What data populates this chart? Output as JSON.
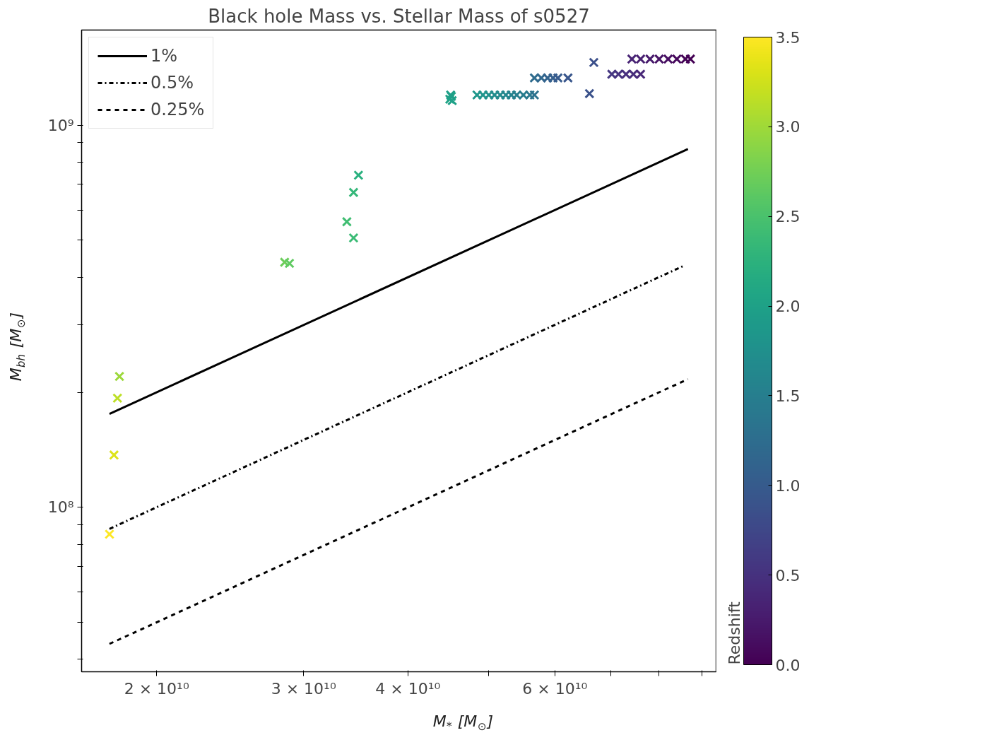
{
  "chart_data": {
    "type": "scatter",
    "title": "Black hole Mass vs. Stellar Mass of s0527",
    "xlabel": "M$_{*}$ [M$_{⊙}$]",
    "ylabel": "M$_{bh}$ [M$_{⊙}$]",
    "clabel": "Redshift",
    "log": "xy",
    "grid": false,
    "legend": "top left",
    "marker": "cross",
    "xlim": [
      16260000000.0,
      93600000000.0
    ],
    "ylim": [
      37100000.0,
      1775000000.0
    ],
    "xticks": [
      {
        "value": 20000000000.0,
        "label": "2 × 10¹⁰"
      },
      {
        "value": 30000000000.0,
        "label": "3 × 10¹⁰"
      },
      {
        "value": 40000000000.0,
        "label": "4 × 10¹⁰"
      },
      {
        "value": 50000000000.0,
        "label": null
      },
      {
        "value": 60000000000.0,
        "label": "6 × 10¹⁰"
      },
      {
        "value": 70000000000.0,
        "label": null
      },
      {
        "value": 80000000000.0,
        "label": null
      },
      {
        "value": 90000000000.0,
        "label": null
      }
    ],
    "yticks": [
      {
        "value": 40000000.0,
        "label": null
      },
      {
        "value": 50000000.0,
        "label": null
      },
      {
        "value": 60000000.0,
        "label": null
      },
      {
        "value": 70000000.0,
        "label": null
      },
      {
        "value": 80000000.0,
        "label": null
      },
      {
        "value": 90000000.0,
        "label": null
      },
      {
        "value": 100000000.0,
        "label": "10⁸"
      },
      {
        "value": 200000000.0,
        "label": null
      },
      {
        "value": 300000000.0,
        "label": null
      },
      {
        "value": 400000000.0,
        "label": null
      },
      {
        "value": 500000000.0,
        "label": null
      },
      {
        "value": 600000000.0,
        "label": null
      },
      {
        "value": 700000000.0,
        "label": null
      },
      {
        "value": 800000000.0,
        "label": null
      },
      {
        "value": 900000000.0,
        "label": null
      },
      {
        "value": 1000000000.0,
        "label": "10⁹"
      }
    ],
    "clim": [
      0,
      3.5
    ],
    "cticks": [
      {
        "value": 0,
        "label": "0.0"
      },
      0.5,
      {
        "value": 1,
        "label": "1.0"
      },
      1.5,
      {
        "value": 2,
        "label": "2.0"
      },
      2.5,
      {
        "value": 3,
        "label": "3.0"
      },
      3.5
    ],
    "series": [
      {
        "colors": [
          "#fde725",
          "#dde318",
          "#bddf26",
          "#9cd83b",
          "#6ccd5a",
          "#5fca61",
          "#40bd72",
          "#3bbb75",
          "#35b779",
          "#2ab07f",
          "#20a486",
          "#1fa287",
          "#1fa188",
          "#1f9f88",
          "#1f978b",
          "#1f948c",
          "#21918c",
          "#228d8d",
          "#238a8d",
          "#24868e",
          "#25838e",
          "#277f8e",
          "#287c8e",
          "#2a788e",
          "#2c728e",
          "#2f6c8e",
          "#31688e",
          "#33638d",
          "#355f8d",
          "#375b8d",
          "#39568c",
          "#3c508b",
          "#3b528b",
          "#453781",
          "#46337f",
          "#472f7d",
          "#472d7b",
          "#482878",
          "#482475",
          "#482071",
          "#481b6d",
          "#471365",
          "#470e61",
          "#46085c",
          "#450457",
          "#440154"
        ],
        "x": [
          17560000000.0,
          17780000000.0,
          17950000000.0,
          18050000000.0,
          28470000000.0,
          28850000000.0,
          33800000000.0,
          34430000000.0,
          34430000000.0,
          34900000000.0,
          44900000000.0,
          45100000000.0,
          45200000000.0,
          45000000000.0,
          48400000000.0,
          49200000000.0,
          50000000000.0,
          50800000000.0,
          51600000000.0,
          52400000000.0,
          53200000000.0,
          54000000000.0,
          55000000000.0,
          56000000000.0,
          56700000000.0,
          56700000000.0,
          57800000000.0,
          58800000000.0,
          59700000000.0,
          60500000000.0,
          62200000000.0,
          66800000000.0,
          66000000000.0,
          70200000000.0,
          71500000000.0,
          73000000000.0,
          74500000000.0,
          76000000000.0,
          74200000000.0,
          76000000000.0,
          78000000000.0,
          80000000000.0,
          82000000000.0,
          84000000000.0,
          86000000000.0,
          87200000000.0
        ],
        "values": [
          85000000.0,
          137000000.0,
          193000000.0,
          220000000.0,
          438000000.0,
          435000000.0,
          559000000.0,
          507000000.0,
          667000000.0,
          740000000.0,
          1170000000.0,
          1190000000.0,
          1160000000.0,
          1200000000.0,
          1200000000.0,
          1200000000.0,
          1200000000.0,
          1200000000.0,
          1200000000.0,
          1200000000.0,
          1200000000.0,
          1200000000.0,
          1200000000.0,
          1200000000.0,
          1200000000.0,
          1330000000.0,
          1330000000.0,
          1330000000.0,
          1330000000.0,
          1330000000.0,
          1330000000.0,
          1460000000.0,
          1210000000.0,
          1360000000.0,
          1360000000.0,
          1360000000.0,
          1360000000.0,
          1360000000.0,
          1490000000.0,
          1490000000.0,
          1490000000.0,
          1490000000.0,
          1490000000.0,
          1490000000.0,
          1490000000.0,
          1490000000.0
        ],
        "cvalues": [
          3.5,
          3.3,
          3.15,
          3.0,
          2.7,
          2.65,
          2.4,
          2.35,
          2.3,
          2.2,
          2.05,
          2.03,
          2.0,
          1.98,
          1.85,
          1.8,
          1.75,
          1.7,
          1.65,
          1.6,
          1.55,
          1.5,
          1.45,
          1.4,
          1.35,
          1.25,
          1.2,
          1.15,
          1.1,
          1.05,
          1.0,
          0.9,
          0.95,
          0.55,
          0.5,
          0.47,
          0.44,
          0.4,
          0.35,
          0.3,
          0.25,
          0.2,
          0.15,
          0.1,
          0.05,
          0.0
        ]
      },
      {
        "type": "line",
        "name": "1%",
        "color": "#000000",
        "line_style": "solid",
        "marker": "none",
        "x": [
          17560000000.0,
          86600000000.0
        ],
        "values": [
          175600000.0,
          866000000.0
        ]
      },
      {
        "type": "line",
        "name": "0.5%",
        "color": "#000000",
        "line_style": "dashdot",
        "marker": "none",
        "x": [
          17560000000.0,
          85700000000.0
        ],
        "values": [
          87800000.0,
          429000000.0
        ]
      },
      {
        "type": "line",
        "name": "0.25%",
        "color": "#000000",
        "line_style": "dashed",
        "marker": "none",
        "x": [
          17560000000.0,
          86600000000.0
        ],
        "values": [
          43900000.0,
          216500000.0
        ]
      }
    ]
  }
}
